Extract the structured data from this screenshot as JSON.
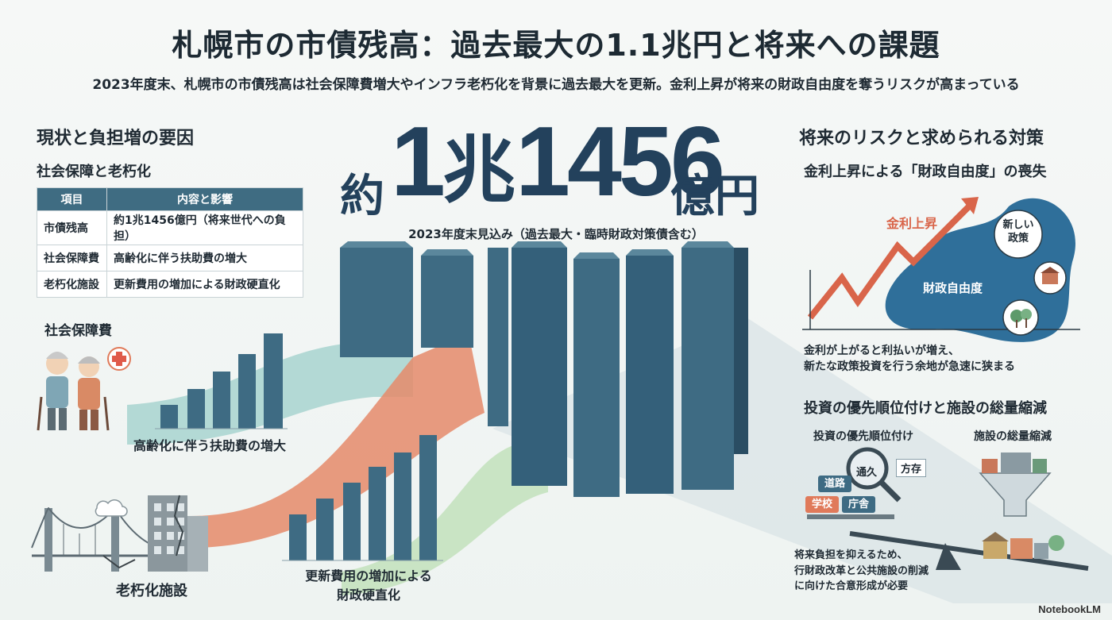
{
  "title": "札幌市の市債残高：過去最大の1.1兆円と将来への課題",
  "subtitle": "2023年度末、札幌市の市債残高は社会保障費増大やインフラ老朽化を背景に過去最大を更新。金利上昇が将来の財政自由度を奪うリスクが高まっている",
  "left": {
    "heading": "現状と負担増の要因",
    "subheading": "社会保障と老朽化",
    "table": {
      "headers": [
        "項目",
        "内容と影響"
      ],
      "rows": [
        [
          "市債残高",
          "約1兆1456億円（将来世代への負担）"
        ],
        [
          "社会保障費",
          "高齢化に伴う扶助費の増大"
        ],
        [
          "老朽化施設",
          "更新費用の増加による財政硬直化"
        ]
      ]
    },
    "social_label": "社会保障費",
    "social_caption": "高齢化に伴う扶助費の増大",
    "aging_label": "老朽化施設",
    "aging_caption_line1": "更新費用の増加による",
    "aging_caption_line2": "財政硬直化"
  },
  "center": {
    "prefix": "約",
    "main_digits": "1",
    "main_kanji": "兆",
    "main_digits2": "1456",
    "suffix": "億円",
    "note": "2023年度末見込み（過去最大・臨時財政対策債含む）"
  },
  "right": {
    "heading": "将来のリスクと求められる対策",
    "subheading1": "金利上昇による「財政自由度」の喪失",
    "rate_label": "金利上昇",
    "bubble_label": "財政自由度",
    "new_policy": "新しい政策",
    "risk_text_line1": "金利が上がると利払いが増え、",
    "risk_text_line2": "新たな政策投資を行う余地が急速に狭まる",
    "subheading2": "投資の優先順位付けと施設の総量縮減",
    "priority_label": "投資の優先順位付け",
    "reduction_label": "施設の総量縮減",
    "tags": [
      "道路",
      "通久",
      "方存",
      "学校",
      "庁舎"
    ],
    "measure_line1": "将来負担を抑えるため、",
    "measure_line2": "行財政改革と公共施設の削減",
    "measure_line3": "に向けた合意形成が必要"
  },
  "brand": "NotebookLM",
  "colors": {
    "navy": "#23415c",
    "bar": "#3e6b83",
    "orange": "#e07a5a",
    "teal": "#9fd0cc",
    "green": "#b9dcb2",
    "blob": "#2f6f9a"
  }
}
